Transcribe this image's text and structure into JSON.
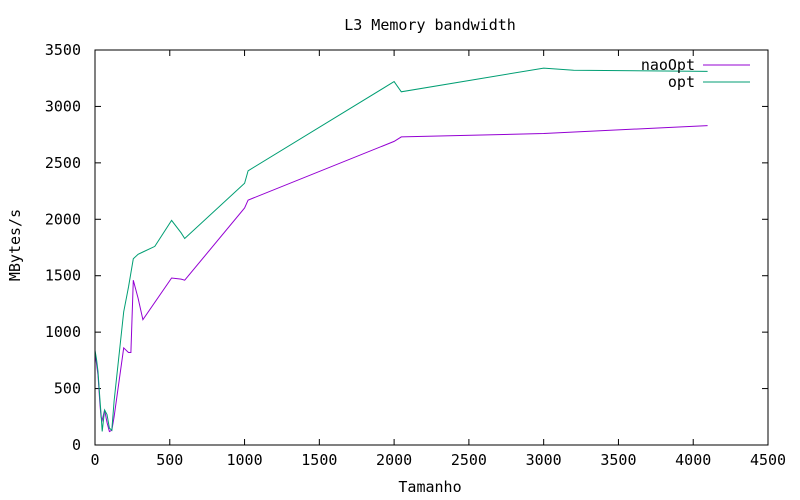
{
  "chart_data": {
    "type": "line",
    "title": "L3 Memory bandwidth",
    "xlabel": "Tamanho",
    "ylabel": "MBytes/s",
    "xlim": [
      0,
      4500
    ],
    "ylim": [
      0,
      3500
    ],
    "xticks": [
      0,
      500,
      1000,
      1500,
      2000,
      2500,
      3000,
      3500,
      4000,
      4500
    ],
    "yticks": [
      0,
      500,
      1000,
      1500,
      2000,
      2500,
      3000,
      3500
    ],
    "xtick_labels": [
      "0",
      "500",
      "1000",
      "1500",
      "2000",
      "2500",
      "3000",
      "3500",
      "4000",
      "4500"
    ],
    "ytick_labels": [
      "0",
      "500",
      "1000",
      "1500",
      "2000",
      "2500",
      "3000",
      "3500"
    ],
    "grid": false,
    "legend_position": "top-right",
    "series": [
      {
        "name": "naoOpt",
        "color": "#9400d3",
        "x": [
          0,
          10,
          20,
          32,
          40,
          48,
          64,
          80,
          96,
          112,
          128,
          192,
          224,
          240,
          256,
          288,
          320,
          512,
          576,
          600,
          1000,
          1024,
          2000,
          2048,
          3000,
          4096
        ],
        "y": [
          820,
          720,
          620,
          380,
          250,
          220,
          310,
          200,
          120,
          130,
          250,
          860,
          820,
          820,
          1460,
          1300,
          1110,
          1480,
          1470,
          1460,
          2100,
          2170,
          2690,
          2730,
          2760,
          2830
        ]
      },
      {
        "name": "opt",
        "color": "#009e73",
        "x": [
          0,
          10,
          20,
          32,
          40,
          48,
          64,
          80,
          96,
          112,
          128,
          192,
          224,
          256,
          288,
          320,
          400,
          512,
          576,
          600,
          1000,
          1024,
          2000,
          2048,
          3000,
          3200,
          4096
        ],
        "y": [
          840,
          760,
          650,
          420,
          280,
          120,
          310,
          270,
          150,
          130,
          390,
          1180,
          1400,
          1650,
          1690,
          1710,
          1760,
          1990,
          1880,
          1830,
          2320,
          2430,
          3220,
          3130,
          3340,
          3320,
          3310
        ]
      }
    ]
  }
}
